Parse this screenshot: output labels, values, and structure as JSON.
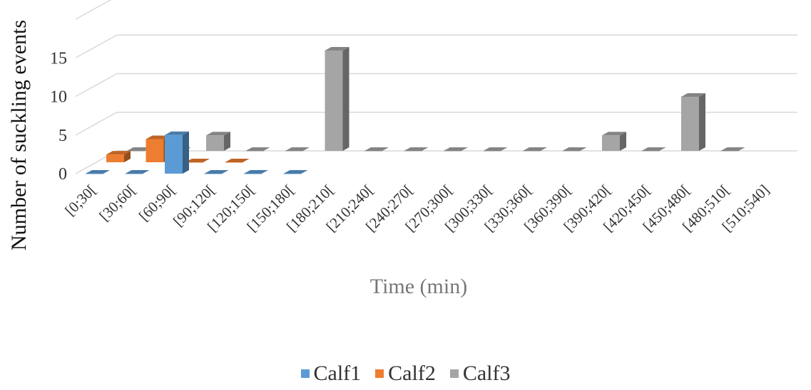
{
  "chart_data": {
    "type": "bar",
    "style": "3d-column",
    "xlabel": "Time (min)",
    "ylabel": "Number of suckling events",
    "ylim": [
      0,
      20
    ],
    "yticks": [
      0,
      5,
      10,
      15
    ],
    "grid": true,
    "legend_position": "bottom",
    "categories": [
      "[0;30[",
      "[30;60[",
      "[60;90[",
      "[90;120[",
      "[120;150[",
      "[150;180[",
      "[180;210[",
      "[210;240[",
      "[240;270[",
      "[270;300[",
      "[300;330[",
      "[330;360[",
      "[360;390[",
      "[390;420[",
      "[420;450[",
      "[450;480[",
      "[480;510[",
      "[510;540]"
    ],
    "series": [
      {
        "name": "Calf1",
        "color": "#5B9BD5",
        "values": [
          0,
          0,
          5,
          0,
          0,
          0,
          null,
          null,
          null,
          null,
          null,
          null,
          null,
          null,
          null,
          null,
          null,
          null
        ]
      },
      {
        "name": "Calf2",
        "color": "#ED7D31",
        "values": [
          1,
          3,
          0,
          0,
          null,
          null,
          null,
          null,
          null,
          null,
          null,
          null,
          null,
          null,
          null,
          null,
          null,
          null
        ]
      },
      {
        "name": "Calf3",
        "color": "#A5A5A5",
        "values": [
          0,
          0,
          2,
          0,
          0,
          13,
          0,
          0,
          0,
          0,
          0,
          0,
          2,
          0,
          7,
          0,
          null,
          null
        ]
      }
    ]
  }
}
